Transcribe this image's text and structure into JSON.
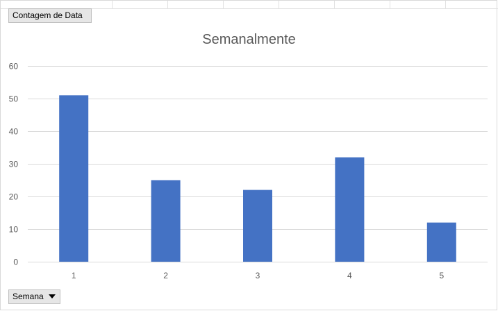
{
  "pivot_fields": {
    "value_field_label": "Contagem  de Data",
    "axis_field_label": "Semana"
  },
  "chart_data": {
    "type": "bar",
    "title": "Semanalmente",
    "categories": [
      "1",
      "2",
      "3",
      "4",
      "5"
    ],
    "values": [
      51,
      25,
      22,
      32,
      12
    ],
    "ylim": [
      0,
      60
    ],
    "yticks": [
      0,
      10,
      20,
      30,
      40,
      50,
      60
    ],
    "grid": true,
    "legend": "none",
    "bar_color": "#4472c4",
    "gridline_color": "#d9d9d9",
    "tick_label_color": "#595959"
  }
}
